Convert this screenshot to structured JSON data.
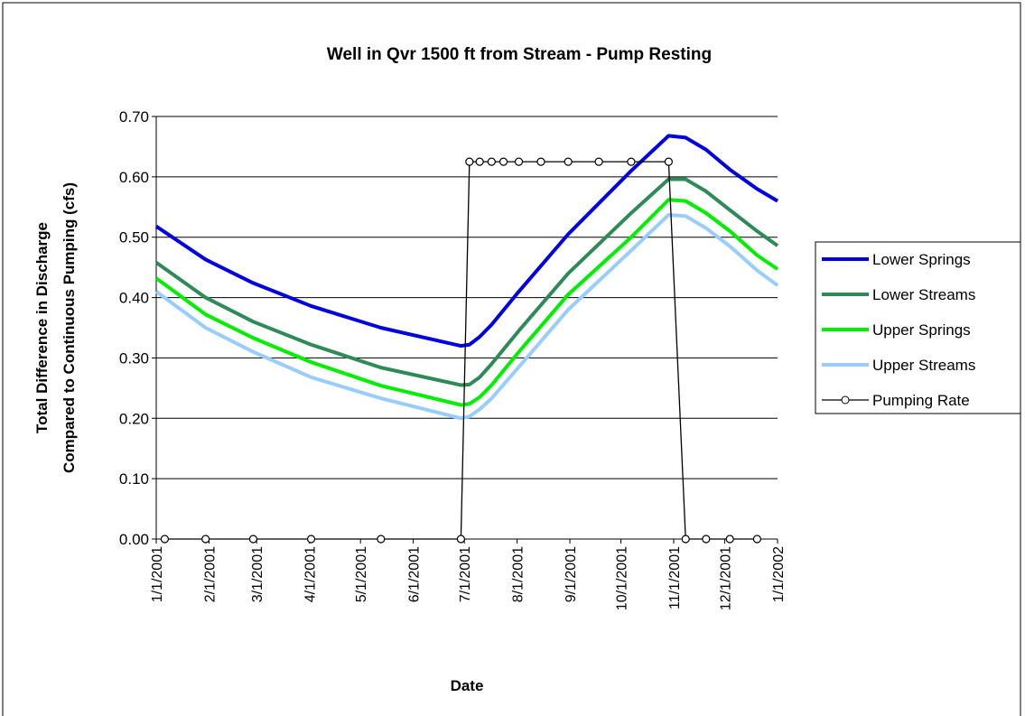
{
  "chart_data": {
    "type": "line",
    "title": "Well in Qvr 1500 ft from Stream - Pump Resting",
    "xlabel": "Date",
    "ylabel": [
      "Total Difference in Discharge",
      "Compared to Continuous Pumping (cfs)"
    ],
    "x": [
      "2001-01-01",
      "2001-01-30",
      "2001-02-27",
      "2001-04-02",
      "2001-05-13",
      "2001-06-29",
      "2001-07-04",
      "2001-07-10",
      "2001-07-17",
      "2001-08-02",
      "2001-08-31",
      "2001-10-07",
      "2001-10-29",
      "2001-11-08",
      "2001-11-20",
      "2001-12-04",
      "2001-12-20",
      "2002-01-01"
    ],
    "series": [
      {
        "name": "Lower Springs",
        "color": "#0000e0",
        "values": [
          0.518,
          0.463,
          0.424,
          0.386,
          0.35,
          0.32,
          0.322,
          0.335,
          0.355,
          0.41,
          0.505,
          0.61,
          0.668,
          0.665,
          0.645,
          0.612,
          0.58,
          0.56
        ]
      },
      {
        "name": "Lower Streams",
        "color": "#2e8b57",
        "values": [
          0.458,
          0.4,
          0.36,
          0.322,
          0.284,
          0.255,
          0.256,
          0.268,
          0.29,
          0.345,
          0.44,
          0.54,
          0.596,
          0.596,
          0.576,
          0.545,
          0.51,
          0.486
        ]
      },
      {
        "name": "Upper Springs",
        "color": "#00ee00",
        "values": [
          0.432,
          0.372,
          0.333,
          0.293,
          0.254,
          0.222,
          0.224,
          0.235,
          0.255,
          0.31,
          0.405,
          0.5,
          0.562,
          0.56,
          0.54,
          0.51,
          0.47,
          0.447
        ]
      },
      {
        "name": "Upper Streams",
        "color": "#99ccff",
        "values": [
          0.41,
          0.35,
          0.31,
          0.268,
          0.233,
          0.2,
          0.203,
          0.215,
          0.233,
          0.285,
          0.38,
          0.478,
          0.537,
          0.535,
          0.515,
          0.485,
          0.445,
          0.42
        ]
      },
      {
        "name": "Pumping Rate",
        "color": "#000000",
        "marker": "circle",
        "x": [
          "2001-01-06",
          "2001-01-30",
          "2001-02-27",
          "2001-04-02",
          "2001-05-13",
          "2001-06-29",
          "2001-07-04",
          "2001-07-10",
          "2001-07-17",
          "2001-07-24",
          "2001-08-02",
          "2001-08-15",
          "2001-08-31",
          "2001-09-18",
          "2001-10-07",
          "2001-10-29",
          "2001-11-08",
          "2001-11-20",
          "2001-12-04",
          "2001-12-20"
        ],
        "values": [
          0,
          0,
          0,
          0,
          0,
          0,
          0.625,
          0.625,
          0.625,
          0.625,
          0.625,
          0.625,
          0.625,
          0.625,
          0.625,
          0.625,
          0,
          0,
          0,
          0
        ]
      }
    ],
    "xlim": [
      "2001-01-01",
      "2002-01-01"
    ],
    "xticks": [
      {
        "value": "2001-01-01",
        "label": "1/1/2001"
      },
      {
        "value": "2001-02-01",
        "label": "2/1/2001"
      },
      {
        "value": "2001-03-01",
        "label": "3/1/2001"
      },
      {
        "value": "2001-04-01",
        "label": "4/1/2001"
      },
      {
        "value": "2001-05-01",
        "label": "5/1/2001"
      },
      {
        "value": "2001-06-01",
        "label": "6/1/2001"
      },
      {
        "value": "2001-07-01",
        "label": "7/1/2001"
      },
      {
        "value": "2001-08-01",
        "label": "8/1/2001"
      },
      {
        "value": "2001-09-01",
        "label": "9/1/2001"
      },
      {
        "value": "2001-10-01",
        "label": "10/1/2001"
      },
      {
        "value": "2001-11-01",
        "label": "11/1/2001"
      },
      {
        "value": "2001-12-01",
        "label": "12/1/2001"
      },
      {
        "value": "2002-01-01",
        "label": "1/1/2002"
      }
    ],
    "ylim": [
      0,
      0.7
    ],
    "yticks": [
      {
        "value": 0,
        "label": "0.00"
      },
      {
        "value": 0.1,
        "label": "0.10"
      },
      {
        "value": 0.2,
        "label": "0.20"
      },
      {
        "value": 0.3,
        "label": "0.30"
      },
      {
        "value": 0.4,
        "label": "0.40"
      },
      {
        "value": 0.5,
        "label": "0.50"
      },
      {
        "value": 0.6,
        "label": "0.60"
      },
      {
        "value": 0.7,
        "label": "0.70"
      }
    ],
    "grid": true,
    "legend": "right"
  }
}
